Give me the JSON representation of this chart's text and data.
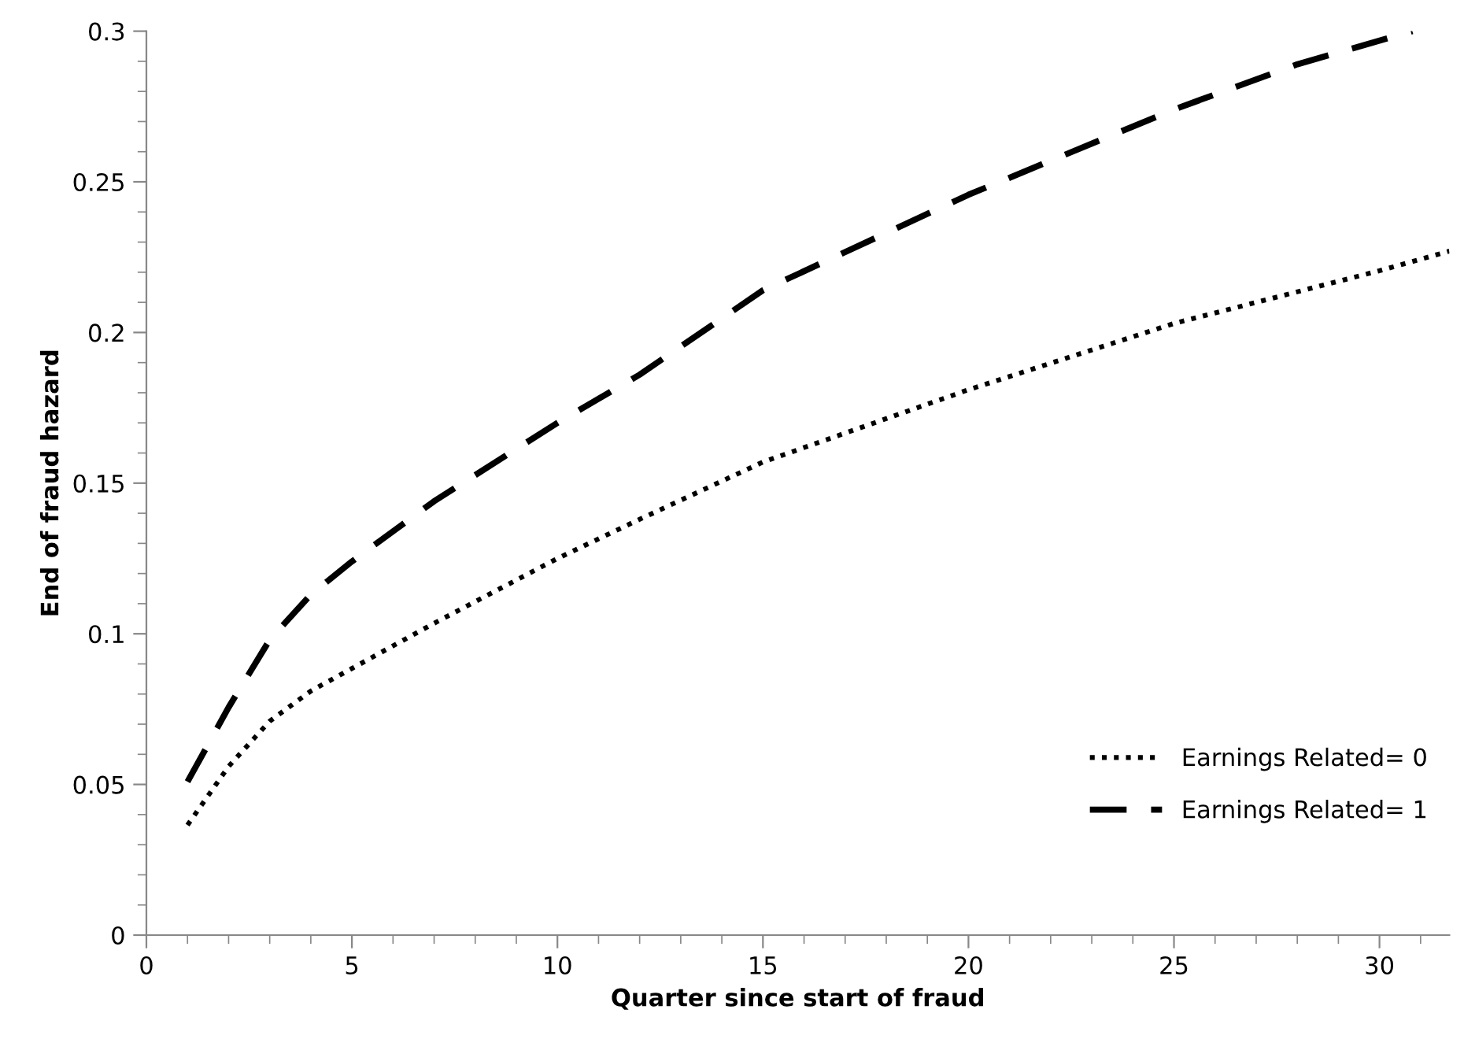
{
  "chart_data": {
    "type": "line",
    "xlabel": "Quarter since start of fraud",
    "ylabel": "End of fraud hazard",
    "xlim": [
      0,
      31.7
    ],
    "xticks": [
      0,
      5,
      10,
      15,
      20,
      25,
      30
    ],
    "ylim": [
      0,
      0.3
    ],
    "yticks": [
      0,
      0.05,
      0.1,
      0.15,
      0.2,
      0.25,
      0.3
    ],
    "grid": false,
    "legend": "lower right",
    "series": [
      {
        "name": "Earnings Related= 0",
        "color": "#000000",
        "line_style": "dotted",
        "x": [
          1,
          2,
          3,
          4,
          5,
          7,
          10,
          12,
          15,
          20,
          25,
          30,
          31.7
        ],
        "values": [
          0.0365,
          0.056,
          0.071,
          0.081,
          0.0885,
          0.1035,
          0.125,
          0.138,
          0.157,
          0.181,
          0.203,
          0.2205,
          0.227
        ]
      },
      {
        "name": "Earnings Related= 1",
        "color": "#000000",
        "line_style": "dashed",
        "x": [
          1,
          2,
          3,
          4,
          5,
          7,
          10,
          12,
          15,
          20,
          25,
          28,
          30.8
        ],
        "values": [
          0.0509,
          0.0756,
          0.098,
          0.113,
          0.124,
          0.144,
          0.17,
          0.186,
          0.214,
          0.2457,
          0.274,
          0.289,
          0.3
        ]
      }
    ]
  }
}
